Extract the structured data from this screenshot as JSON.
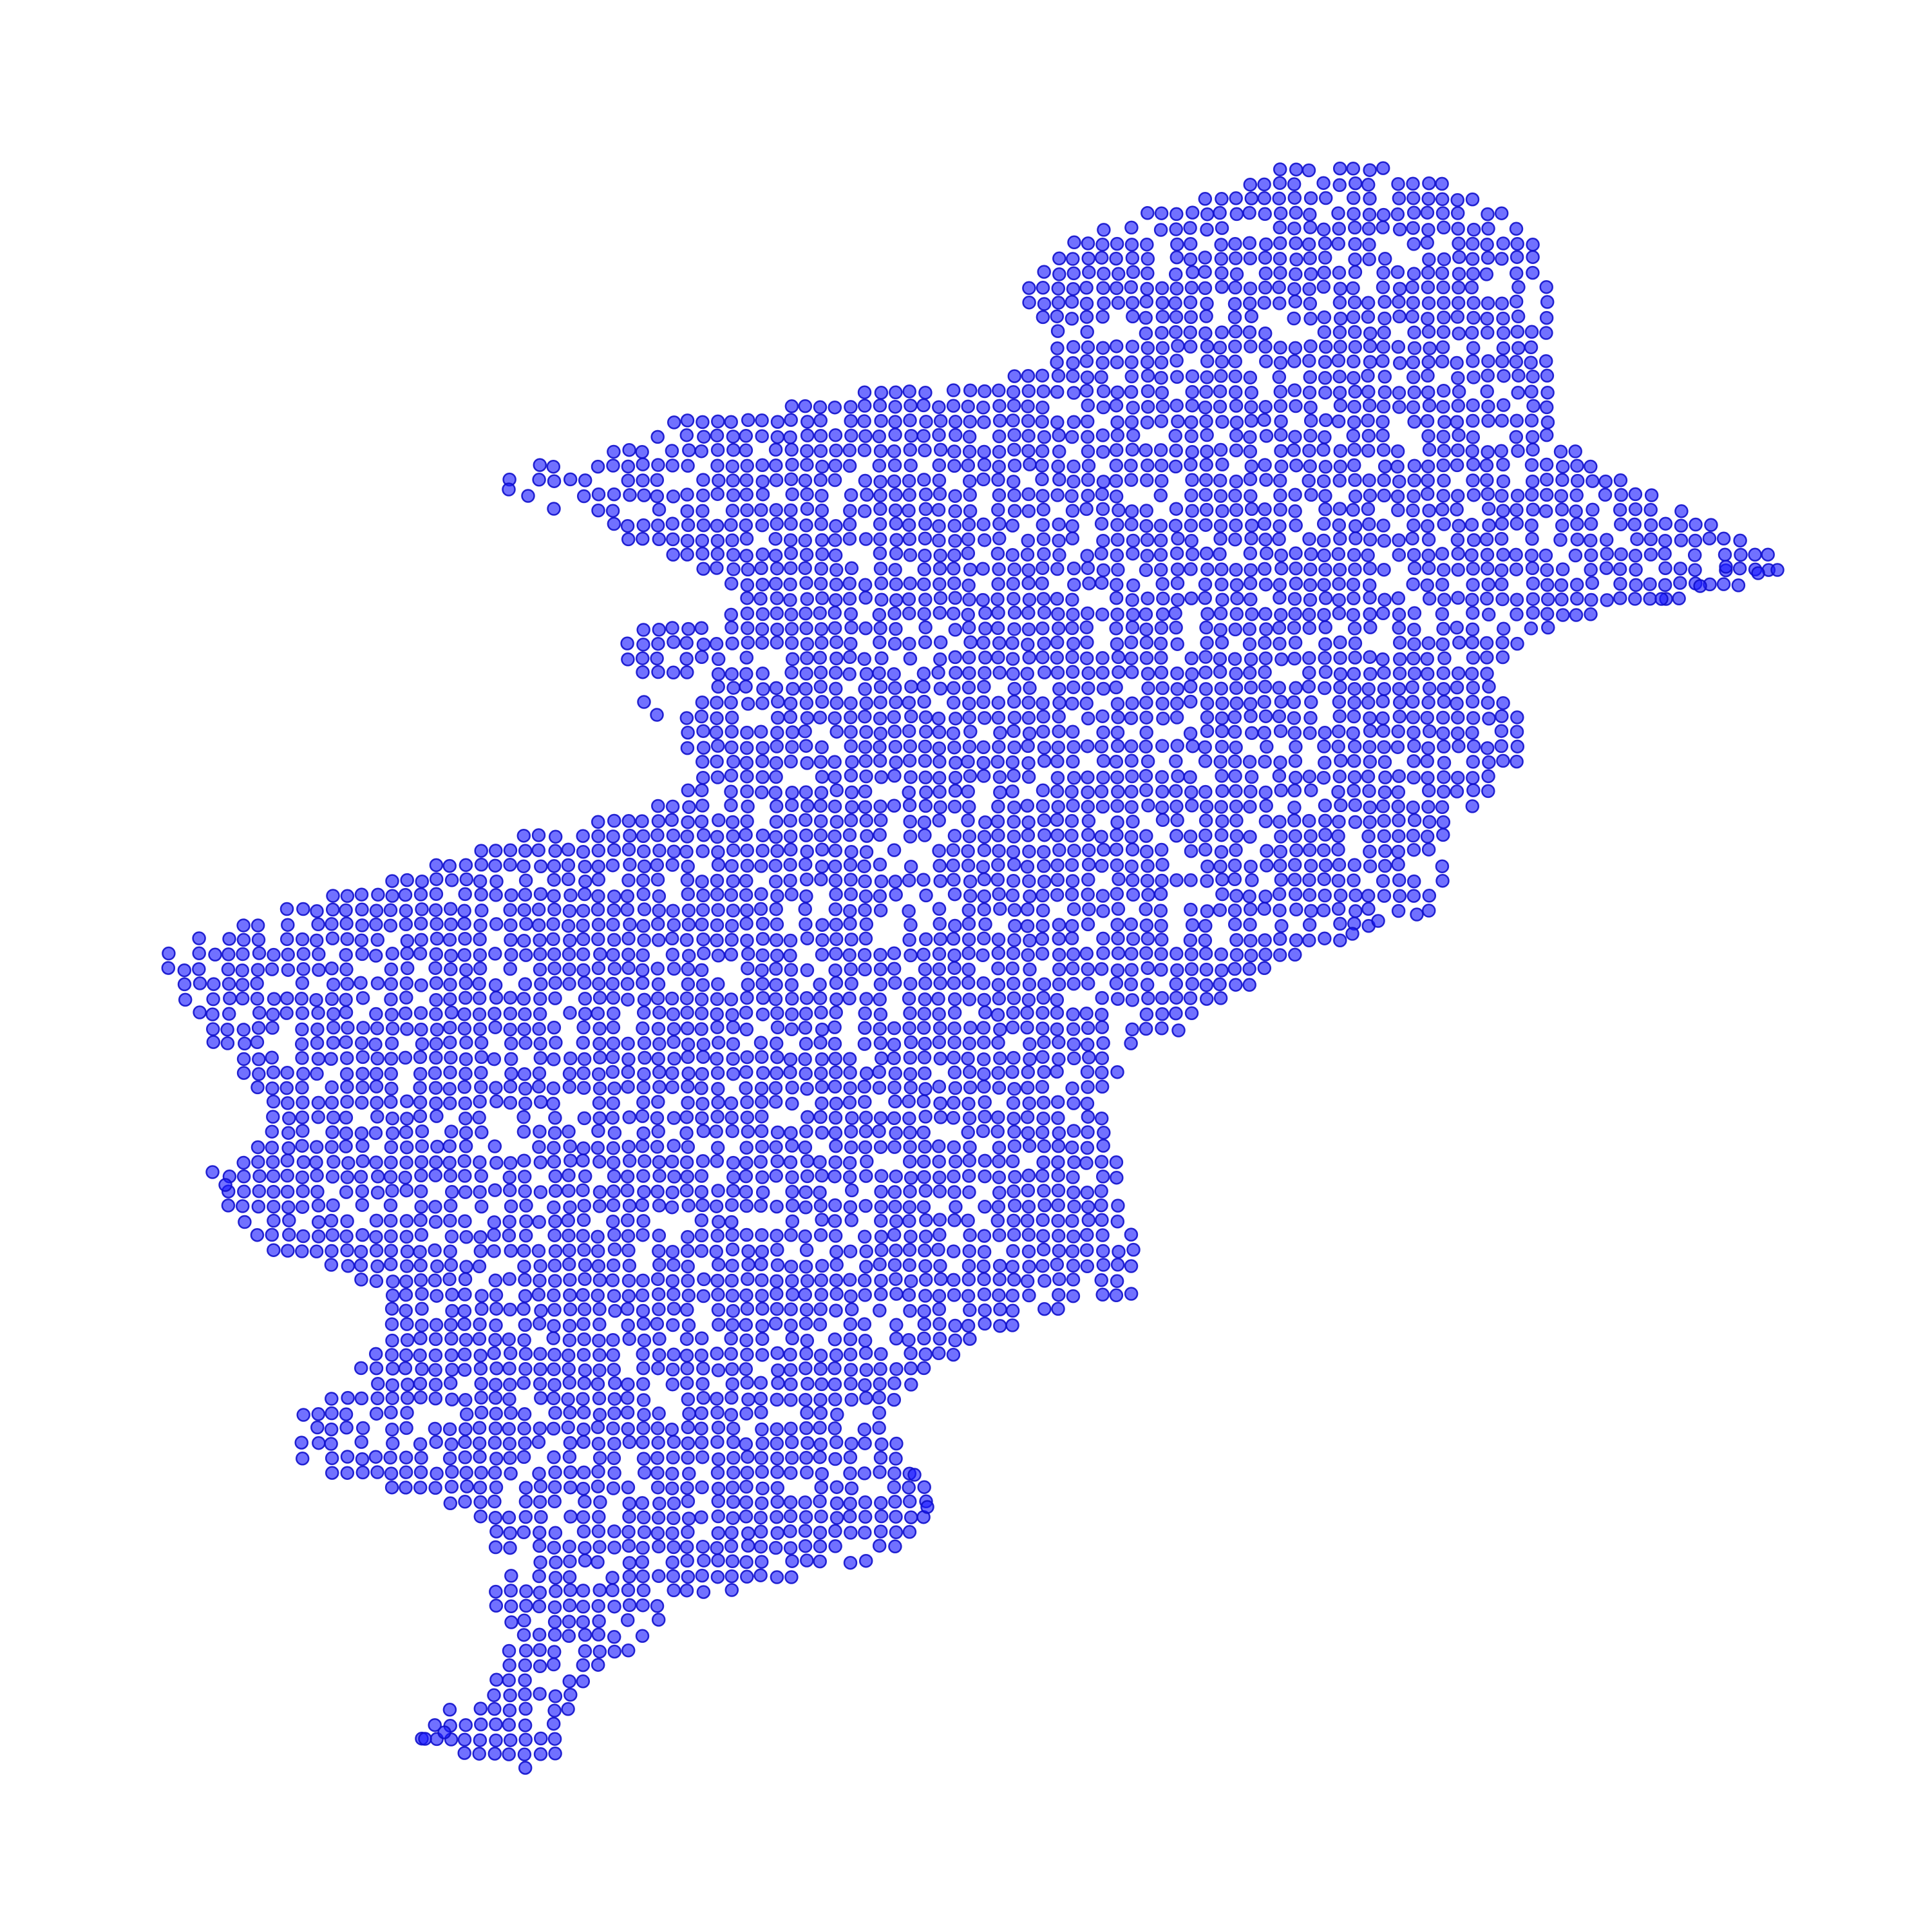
{
  "map": {
    "marker_color": "#1a1aff",
    "marker_opacity": 0.62,
    "background": "#ffffff",
    "grid_spacing_deg": 0.1,
    "extent": {
      "lon": [
        60.8,
        77.8
      ],
      "lat": [
        23.6,
        37.1
      ]
    }
  }
}
